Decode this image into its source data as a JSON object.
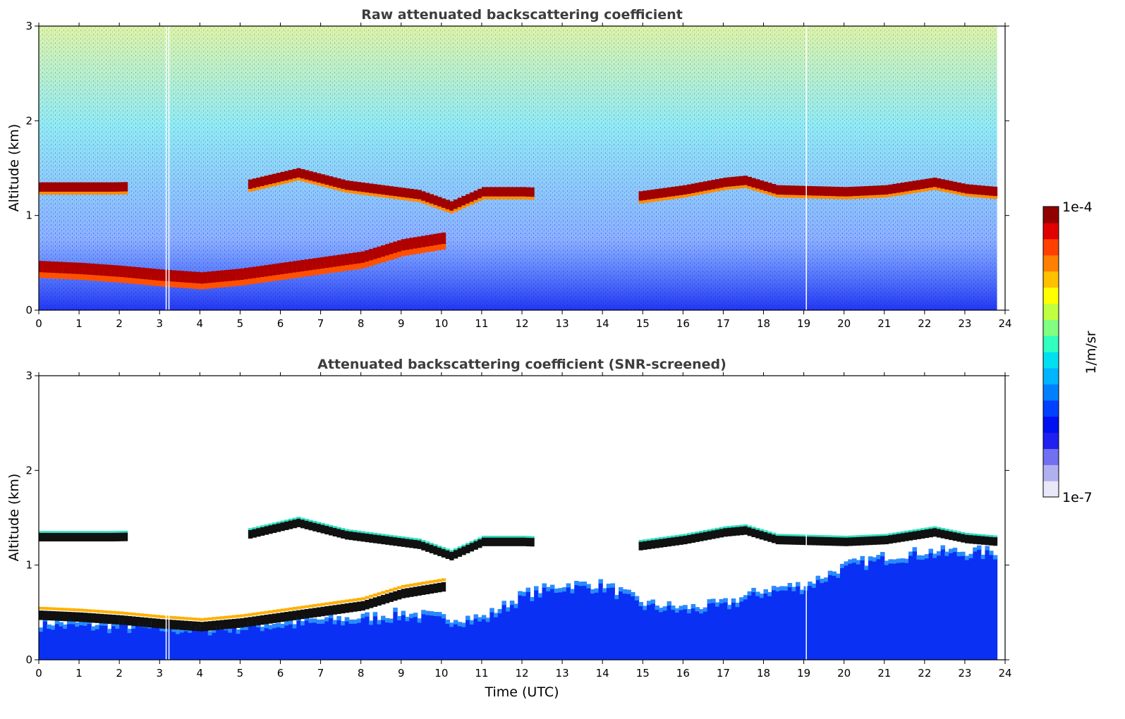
{
  "chart_data": [
    {
      "type": "heatmap",
      "title": "Raw attenuated backscattering coefficient",
      "ylabel": "Altitude (km)",
      "xlabel": "",
      "xlim": [
        0,
        24
      ],
      "ylim": [
        0,
        3
      ],
      "xticks": [
        "0",
        "1",
        "2",
        "3",
        "4",
        "5",
        "6",
        "7",
        "8",
        "9",
        "10",
        "11",
        "12",
        "13",
        "14",
        "15",
        "16",
        "17",
        "18",
        "19",
        "20",
        "21",
        "22",
        "23",
        "24"
      ],
      "yticks": [
        "0",
        "1",
        "2",
        "3"
      ],
      "data_end_hour": 23.8,
      "layers": [
        {
          "name": "boundary-layer",
          "points": [
            [
              0,
              0.52
            ],
            [
              1,
              0.5
            ],
            [
              2,
              0.47
            ],
            [
              3,
              0.43
            ],
            [
              4,
              0.4
            ],
            [
              5,
              0.44
            ],
            [
              6,
              0.5
            ],
            [
              7,
              0.56
            ],
            [
              8,
              0.62
            ],
            [
              9,
              0.75
            ],
            [
              10,
              0.82
            ]
          ]
        },
        {
          "name": "elevated-layer",
          "points": [
            [
              0,
              1.3
            ],
            [
              0.8,
              1.3
            ],
            [
              1.8,
              1.3
            ],
            [
              5.2,
              1.33
            ],
            [
              6.4,
              1.45
            ],
            [
              7.6,
              1.32
            ],
            [
              9.4,
              1.22
            ],
            [
              10.2,
              1.1
            ],
            [
              11,
              1.25
            ],
            [
              12,
              1.25
            ],
            [
              14.8,
              1.2
            ],
            [
              16,
              1.27
            ],
            [
              17,
              1.35
            ],
            [
              17.5,
              1.37
            ],
            [
              18.3,
              1.27
            ],
            [
              20,
              1.25
            ],
            [
              21,
              1.27
            ],
            [
              22.2,
              1.35
            ],
            [
              23,
              1.28
            ],
            [
              23.8,
              1.25
            ]
          ]
        }
      ],
      "gaps_hours": [
        3.15,
        3.22,
        19.05
      ]
    },
    {
      "type": "heatmap",
      "title": "Attenuated backscattering coefficient (SNR-screened)",
      "ylabel": "Altitude (km)",
      "xlabel": "Time (UTC)",
      "xlim": [
        0,
        24
      ],
      "ylim": [
        0,
        3
      ],
      "xticks": [
        "0",
        "1",
        "2",
        "3",
        "4",
        "5",
        "6",
        "7",
        "8",
        "9",
        "10",
        "11",
        "12",
        "13",
        "14",
        "15",
        "16",
        "17",
        "18",
        "19",
        "20",
        "21",
        "22",
        "23",
        "24"
      ],
      "yticks": [
        "0",
        "1",
        "2",
        "3"
      ],
      "data_end_hour": 23.8,
      "screened_top": [
        [
          0,
          0.4
        ],
        [
          4,
          0.35
        ],
        [
          6,
          0.4
        ],
        [
          8,
          0.45
        ],
        [
          9,
          0.5
        ],
        [
          10,
          0.45
        ],
        [
          11,
          0.45
        ],
        [
          12,
          0.7
        ],
        [
          13,
          0.8
        ],
        [
          14,
          0.8
        ],
        [
          15,
          0.6
        ],
        [
          16,
          0.55
        ],
        [
          17,
          0.6
        ],
        [
          18,
          0.75
        ],
        [
          19,
          0.8
        ],
        [
          20,
          1.0
        ],
        [
          21,
          1.1
        ],
        [
          22,
          1.15
        ],
        [
          23.8,
          1.15
        ]
      ]
    }
  ],
  "colorbar": {
    "max_label": "1e-4",
    "min_label": "1e-7",
    "units": "1/m/sr",
    "colors": [
      "#e8e8f8",
      "#b0b0f0",
      "#7070f0",
      "#2020f0",
      "#0010f0",
      "#0040ff",
      "#0080ff",
      "#00b4ff",
      "#00e0f0",
      "#30ffc0",
      "#80ff80",
      "#c0ff40",
      "#ffff00",
      "#ffc000",
      "#ff8000",
      "#ff4000",
      "#e00000",
      "#900000"
    ]
  }
}
